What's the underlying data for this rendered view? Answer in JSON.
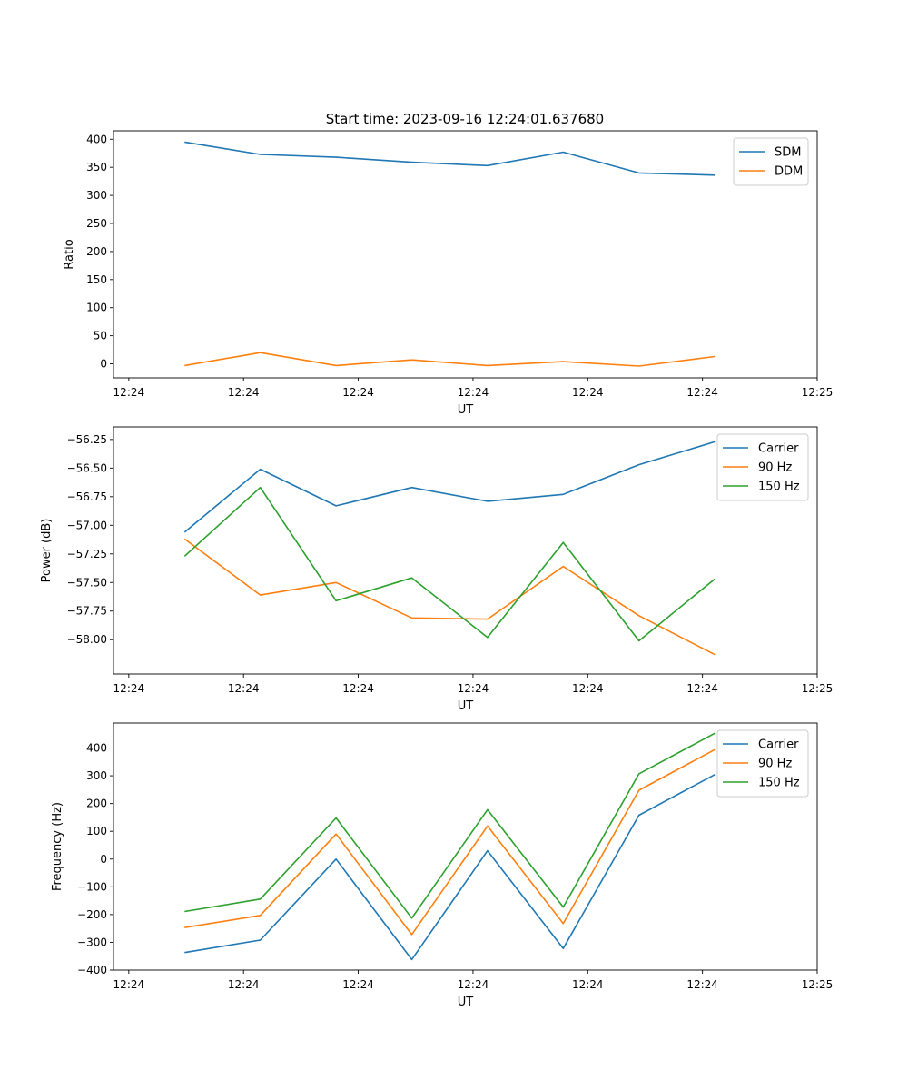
{
  "figure_title": "Start time: 2023-09-16 12:24:01.637680",
  "colors": {
    "c1": "#1f77b4",
    "c2": "#ff7f0e",
    "c3": "#2ca02c"
  },
  "chart_data": [
    {
      "type": "line",
      "title": "Start time: 2023-09-16 12:24:01.637680",
      "xlabel": "UT",
      "ylabel": "Ratio",
      "xlim": [
        -0.2,
        9.0
      ],
      "ylim": [
        -25,
        415
      ],
      "x_ticks": [
        0,
        1.5,
        3,
        4.5,
        6,
        7.5,
        9
      ],
      "x_tick_labels": [
        "12:24",
        "12:24",
        "12:24",
        "12:24",
        "12:24",
        "12:24",
        "12:25"
      ],
      "y_ticks": [
        0,
        50,
        100,
        150,
        200,
        250,
        300,
        350,
        400
      ],
      "y_tick_labels": [
        "0",
        "50",
        "100",
        "150",
        "200",
        "250",
        "300",
        "350",
        "400"
      ],
      "x": [
        0.73,
        1.72,
        2.71,
        3.7,
        4.69,
        5.68,
        6.67,
        7.66
      ],
      "legend": "upper right",
      "series": [
        {
          "name": "SDM",
          "color": "#1f77b4",
          "values": [
            395,
            373,
            368,
            359,
            353,
            377,
            340,
            336
          ]
        },
        {
          "name": "DDM",
          "color": "#ff7f0e",
          "values": [
            -3,
            20,
            -3,
            7,
            -3,
            4,
            -4,
            13
          ]
        }
      ]
    },
    {
      "type": "line",
      "title": "",
      "xlabel": "UT",
      "ylabel": "Power (dB)",
      "xlim": [
        -0.2,
        9.0
      ],
      "ylim": [
        -58.3,
        -56.14
      ],
      "x_ticks": [
        0,
        1.5,
        3,
        4.5,
        6,
        7.5,
        9
      ],
      "x_tick_labels": [
        "12:24",
        "12:24",
        "12:24",
        "12:24",
        "12:24",
        "12:24",
        "12:25"
      ],
      "y_ticks": [
        -58.0,
        -57.75,
        -57.5,
        -57.25,
        -57.0,
        -56.75,
        -56.5,
        -56.25
      ],
      "y_tick_labels": [
        "−58.00",
        "−57.75",
        "−57.50",
        "−57.25",
        "−57.00",
        "−56.75",
        "−56.50",
        "−56.25"
      ],
      "x": [
        0.73,
        1.72,
        2.71,
        3.7,
        4.69,
        5.68,
        6.67,
        7.66
      ],
      "legend": "upper right",
      "series": [
        {
          "name": "Carrier",
          "color": "#1f77b4",
          "values": [
            -57.06,
            -56.51,
            -56.83,
            -56.67,
            -56.79,
            -56.73,
            -56.47,
            -56.27
          ]
        },
        {
          "name": "90 Hz",
          "color": "#ff7f0e",
          "values": [
            -57.12,
            -57.61,
            -57.5,
            -57.81,
            -57.82,
            -57.36,
            -57.79,
            -58.13
          ]
        },
        {
          "name": "150 Hz",
          "color": "#2ca02c",
          "values": [
            -57.27,
            -56.67,
            -57.66,
            -57.46,
            -57.98,
            -57.15,
            -58.01,
            -57.47
          ]
        }
      ]
    },
    {
      "type": "line",
      "title": "",
      "xlabel": "UT",
      "ylabel": "Frequency (Hz)",
      "xlim": [
        -0.2,
        9.0
      ],
      "ylim": [
        -400,
        490
      ],
      "x_ticks": [
        0,
        1.5,
        3,
        4.5,
        6,
        7.5,
        9
      ],
      "x_tick_labels": [
        "12:24",
        "12:24",
        "12:24",
        "12:24",
        "12:24",
        "12:24",
        "12:25"
      ],
      "y_ticks": [
        -400,
        -300,
        -200,
        -100,
        0,
        100,
        200,
        300,
        400
      ],
      "y_tick_labels": [
        "−400",
        "−300",
        "−200",
        "−100",
        "0",
        "100",
        "200",
        "300",
        "400"
      ],
      "x": [
        0.73,
        1.72,
        2.71,
        3.7,
        4.69,
        5.68,
        6.67,
        7.66
      ],
      "legend": "upper right",
      "series": [
        {
          "name": "Carrier",
          "color": "#1f77b4",
          "values": [
            -337,
            -292,
            0,
            -362,
            30,
            -322,
            158,
            304
          ]
        },
        {
          "name": "90 Hz",
          "color": "#ff7f0e",
          "values": [
            -247,
            -203,
            90,
            -272,
            119,
            -232,
            248,
            394
          ]
        },
        {
          "name": "150 Hz",
          "color": "#2ca02c",
          "values": [
            -189,
            -144,
            148,
            -213,
            178,
            -173,
            307,
            453
          ]
        }
      ]
    }
  ]
}
